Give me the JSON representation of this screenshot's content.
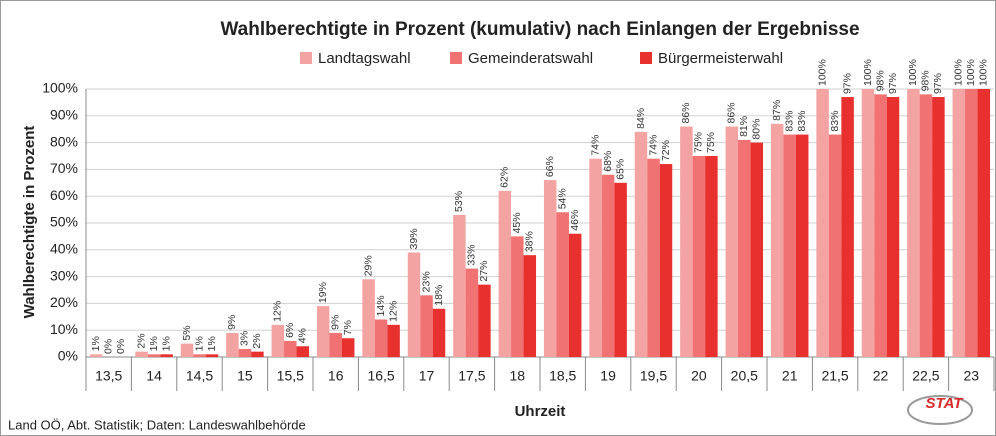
{
  "chart_data": {
    "type": "bar",
    "title": "Wahlberechtigte in Prozent (kumulativ) nach Einlangen der Ergebnisse",
    "x_label": "Uhrzeit",
    "y_label": "Wahlberechtigte in Prozent",
    "source": "Land OÖ, Abt. Statistik; Daten: Landeswahlbehörde",
    "logo": "STAT",
    "categories": [
      "13,5",
      "14",
      "14,5",
      "15",
      "15,5",
      "16",
      "16,5",
      "17",
      "17,5",
      "18",
      "18,5",
      "19",
      "19,5",
      "20",
      "20,5",
      "21",
      "21,5",
      "22",
      "22,5",
      "23"
    ],
    "series": [
      {
        "name": "Landtagswahl",
        "color": "#f4a3a3",
        "values": [
          1,
          2,
          5,
          9,
          12,
          19,
          29,
          39,
          53,
          62,
          66,
          74,
          84,
          86,
          86,
          87,
          100,
          100,
          100,
          100
        ],
        "value_labels": [
          "1%",
          "2%",
          "5%",
          "9%",
          "12%",
          "19%",
          "29%",
          "39%",
          "53%",
          "62%",
          "66%",
          "74%",
          "84%",
          "86%",
          "86%",
          "87%",
          "100%",
          "100%",
          "100%",
          "100%"
        ]
      },
      {
        "name": "Gemeinderatswahl",
        "color": "#f07272",
        "values": [
          0,
          1,
          1,
          3,
          6,
          9,
          14,
          23,
          33,
          45,
          54,
          68,
          74,
          75,
          81,
          83,
          83,
          98,
          98,
          100
        ],
        "value_labels": [
          "0%",
          "1%",
          "1%",
          "3%",
          "6%",
          "9%",
          "14%",
          "23%",
          "33%",
          "45%",
          "54%",
          "68%",
          "74%",
          "75%",
          "81%",
          "83%",
          "83%",
          "98%",
          "98%",
          "100%"
        ]
      },
      {
        "name": "Bürgermeisterwahl",
        "color": "#e8312f",
        "values": [
          0,
          1,
          1,
          2,
          4,
          7,
          12,
          18,
          27,
          38,
          46,
          65,
          72,
          75,
          80,
          83,
          97,
          97,
          97,
          100
        ],
        "value_labels": [
          "0%",
          "1%",
          "1%",
          "2%",
          "4%",
          "7%",
          "12%",
          "18%",
          "27%",
          "38%",
          "46%",
          "65%",
          "72%",
          "75%",
          "80%",
          "83%",
          "97%",
          "97%",
          "97%",
          "100%"
        ]
      }
    ],
    "ylim": [
      0,
      100
    ],
    "yticks": [
      {
        "value": 0,
        "label": "0%"
      },
      {
        "value": 10,
        "label": "10%"
      },
      {
        "value": 20,
        "label": "20%"
      },
      {
        "value": 30,
        "label": "30%"
      },
      {
        "value": 40,
        "label": "40%"
      },
      {
        "value": 50,
        "label": "50%"
      },
      {
        "value": 60,
        "label": "60%"
      },
      {
        "value": 70,
        "label": "70%"
      },
      {
        "value": 80,
        "label": "80%"
      },
      {
        "value": 90,
        "label": "90%"
      },
      {
        "value": 100,
        "label": "100%"
      }
    ],
    "grid": true
  }
}
